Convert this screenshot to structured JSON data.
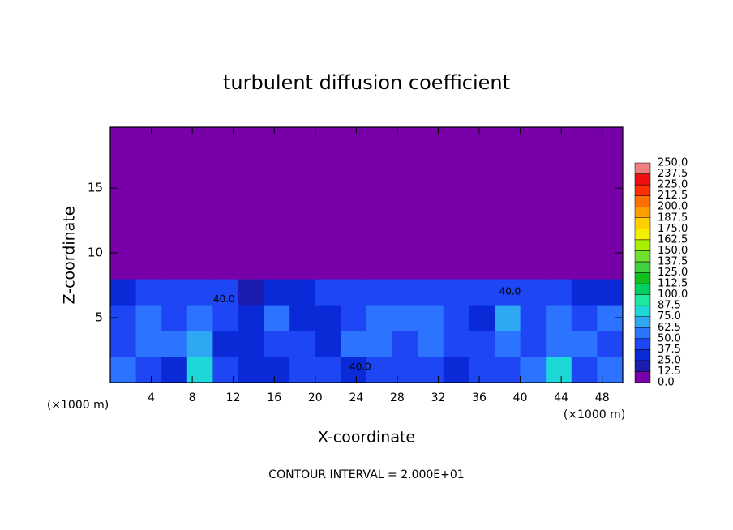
{
  "chart_data": {
    "type": "heatmap",
    "title": "turbulent diffusion coefficient",
    "xlabel": "X-coordinate",
    "ylabel": "Z-coordinate",
    "unit_labels": [
      "(×1000 m)",
      "(×1000 m)"
    ],
    "footer": "CONTOUR INTERVAL = 2.000E+01",
    "xlim": [
      0,
      50
    ],
    "ylim": [
      0,
      19.7
    ],
    "xticks": [
      4,
      8,
      12,
      16,
      20,
      24,
      28,
      32,
      36,
      40,
      44,
      48
    ],
    "yticks": [
      5,
      10,
      15
    ],
    "x_edges": [
      0,
      2.5,
      5,
      7.5,
      10,
      12.5,
      15,
      17.5,
      20,
      22.5,
      25,
      27.5,
      30,
      32.5,
      35,
      37.5,
      40,
      42.5,
      45,
      47.5,
      50
    ],
    "y_edges": [
      0,
      2,
      4,
      6,
      8,
      10,
      12,
      14,
      16,
      18,
      19.7
    ],
    "z": [
      [
        50,
        45,
        35,
        80,
        40,
        35,
        35,
        45,
        45,
        35,
        40,
        45,
        40,
        35,
        40,
        45,
        55,
        75,
        45,
        50
      ],
      [
        40,
        55,
        60,
        65,
        35,
        35,
        45,
        40,
        35,
        50,
        55,
        45,
        60,
        40,
        40,
        60,
        45,
        50,
        55,
        45
      ],
      [
        45,
        60,
        40,
        55,
        40,
        35,
        60,
        35,
        35,
        45,
        55,
        50,
        60,
        45,
        35,
        65,
        40,
        55,
        40,
        60
      ],
      [
        30,
        40,
        45,
        45,
        40,
        20,
        25,
        35,
        40,
        40,
        45,
        45,
        45,
        40,
        45,
        40,
        40,
        40,
        35,
        35
      ],
      [
        0,
        0,
        0,
        0,
        0,
        0,
        0,
        0,
        0,
        0,
        0,
        0,
        0,
        0,
        0,
        0,
        0,
        0,
        0,
        0
      ],
      [
        0,
        0,
        0,
        0,
        0,
        0,
        0,
        0,
        0,
        0,
        0,
        0,
        0,
        0,
        0,
        0,
        0,
        0,
        0,
        0
      ],
      [
        0,
        0,
        0,
        0,
        0,
        0,
        0,
        0,
        0,
        0,
        0,
        0,
        0,
        0,
        0,
        0,
        0,
        0,
        0,
        0
      ],
      [
        0,
        0,
        0,
        0,
        0,
        0,
        0,
        0,
        0,
        0,
        0,
        0,
        0,
        0,
        0,
        0,
        0,
        0,
        0,
        0
      ],
      [
        0,
        0,
        0,
        0,
        0,
        0,
        0,
        0,
        0,
        0,
        0,
        0,
        0,
        0,
        0,
        0,
        0,
        0,
        0,
        0
      ],
      [
        0,
        0,
        0,
        0,
        0,
        0,
        0,
        0,
        0,
        0,
        0,
        0,
        0,
        0,
        0,
        0,
        0,
        0,
        0,
        0
      ]
    ],
    "contour_labels": [
      {
        "text": "40.0",
        "x": 11.1,
        "y": 6.4
      },
      {
        "text": "40.0",
        "x": 24.4,
        "y": 1.2
      },
      {
        "text": "40.0",
        "x": 39.0,
        "y": 7.0
      }
    ],
    "colorbar": {
      "ticks": [
        {
          "value": 0,
          "label": "0.0"
        },
        12.5,
        {
          "value": 25,
          "label": "25.0"
        },
        37.5,
        {
          "value": 50,
          "label": "50.0"
        },
        62.5,
        {
          "value": 75,
          "label": "75.0"
        },
        87.5,
        {
          "value": 100,
          "label": "100.0"
        },
        112.5,
        {
          "value": 125,
          "label": "125.0"
        },
        137.5,
        {
          "value": 150,
          "label": "150.0"
        },
        162.5,
        {
          "value": 175,
          "label": "175.0"
        },
        187.5,
        {
          "value": 200,
          "label": "200.0"
        },
        212.5,
        {
          "value": 225,
          "label": "225.0"
        },
        237.5,
        {
          "value": 250,
          "label": "250.0"
        }
      ],
      "colors": [
        "#7800a8",
        "#1c1cb0",
        "#0a2ad8",
        "#1e46f5",
        "#2c74ff",
        "#2ea8f2",
        "#1ed8d8",
        "#1ee8a0",
        "#00d060",
        "#10c020",
        "#40d040",
        "#70e030",
        "#a8f000",
        "#f0f000",
        "#ffd000",
        "#ffa000",
        "#ff7000",
        "#ff3000",
        "#f01010",
        "#f08080"
      ]
    }
  }
}
